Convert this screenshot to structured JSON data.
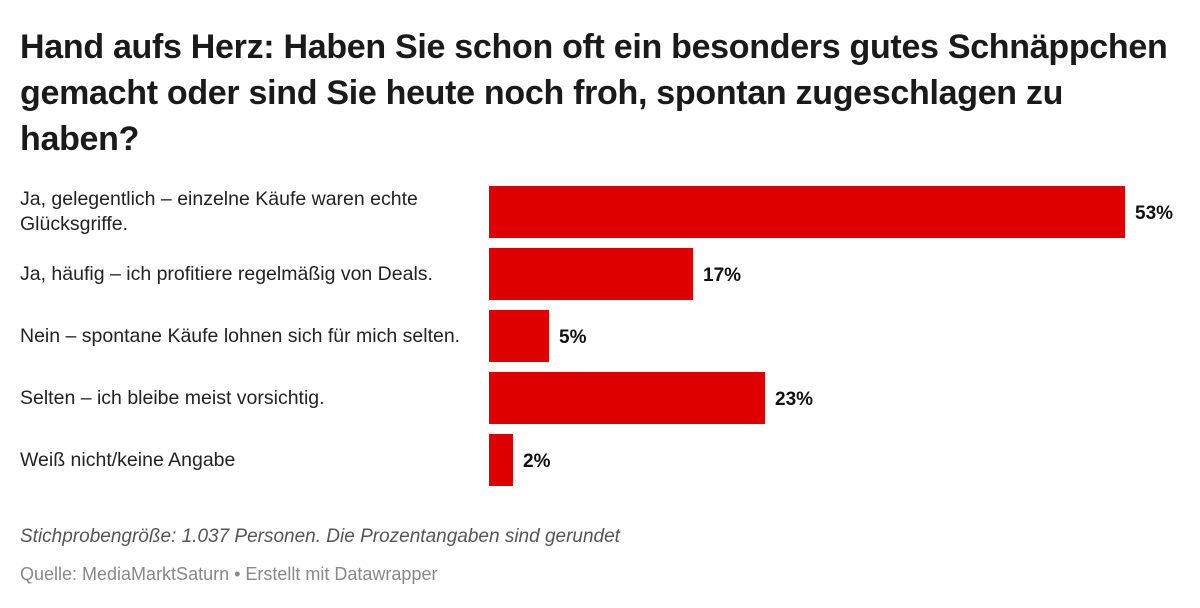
{
  "chart_data": {
    "type": "bar",
    "orientation": "horizontal",
    "title": "Hand aufs Herz: Haben Sie schon oft ein besonders gutes Schnäppchen gemacht oder sind Sie heute noch froh, spontan zugeschlagen zu haben?",
    "categories": [
      "Ja, gelegentlich – einzelne Käufe waren echte Glücksgriffe.",
      "Ja, häufig – ich profitiere regelmäßig von Deals.",
      "Nein – spontane Käufe lohnen sich für mich selten.",
      "Selten – ich bleibe meist vorsichtig.",
      "Weiß nicht/keine Angabe"
    ],
    "values": [
      53,
      17,
      5,
      23,
      2
    ],
    "data_labels": [
      "53%",
      "17%",
      "5%",
      "23%",
      "2%"
    ],
    "unit": "%",
    "xlim": [
      0,
      53
    ],
    "grid": false,
    "bar_color": "#de0000",
    "notes": "Stichprobengröße: 1.037 Personen. Die Prozentangaben sind gerundet",
    "source": "Quelle: MediaMarktSaturn • Erstellt mit Datawrapper"
  }
}
